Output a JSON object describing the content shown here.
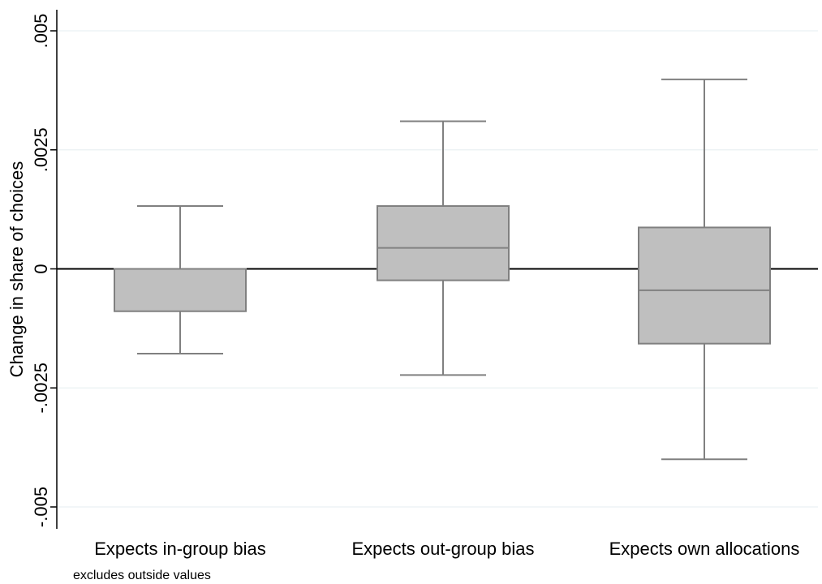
{
  "chart_data": {
    "type": "boxplot",
    "title": "",
    "xlabel": "",
    "ylabel": "Change in share of choices",
    "ylim": [
      -0.0055,
      0.0055
    ],
    "yticks": [
      -0.005,
      -0.0025,
      0,
      0.0025,
      0.005
    ],
    "ytick_labels": [
      "-.005",
      "-.0025",
      "0",
      ".0025",
      ".005"
    ],
    "grid": "horizontal",
    "reference_line": 0,
    "note": "excludes outside values",
    "box_color": "#bfbfbf",
    "line_color": "#808080",
    "categories": [
      "Expects in-group bias",
      "Expects out-group bias",
      "Expects own allocations"
    ],
    "boxes": [
      {
        "whisker_low": -0.00178,
        "q1": -0.00089,
        "median": 0.0,
        "q3": 0.0,
        "whisker_high": 0.00132
      },
      {
        "whisker_low": -0.00223,
        "q1": -0.00024,
        "median": 0.00044,
        "q3": 0.00132,
        "whisker_high": 0.0031
      },
      {
        "whisker_low": -0.004,
        "q1": -0.00157,
        "median": -0.00045,
        "q3": 0.00087,
        "whisker_high": 0.00398
      }
    ]
  }
}
